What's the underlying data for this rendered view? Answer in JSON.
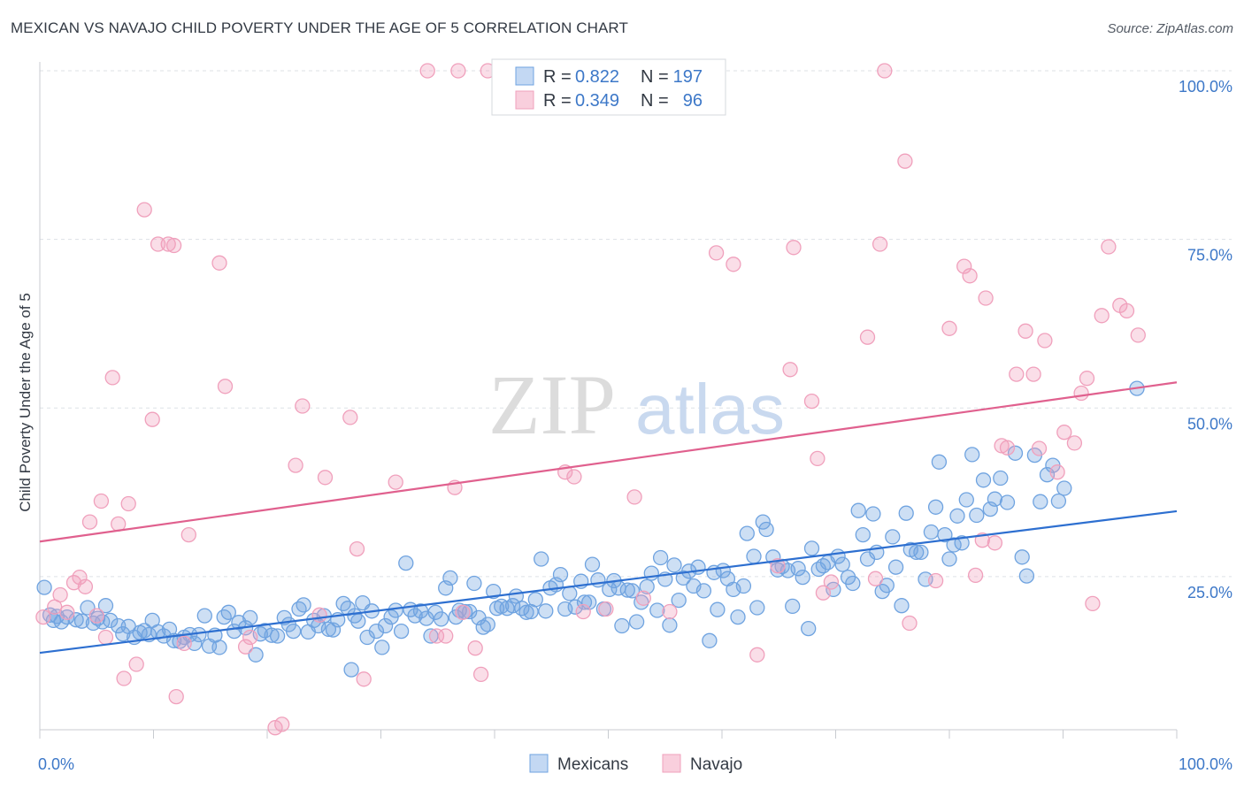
{
  "title": "MEXICAN VS NAVAJO CHILD POVERTY UNDER THE AGE OF 5 CORRELATION CHART",
  "source": "Source: ZipAtlas.com",
  "watermark": {
    "part1": "ZIP",
    "part2": "atlas"
  },
  "colors": {
    "mexicans": "#6fa3e0",
    "mexicans_line": "#2d6fd0",
    "navajo": "#f0a0bc",
    "navajo_line": "#e0608e",
    "tick": "#3d78c8",
    "grid": "#dde1e6"
  },
  "legend": {
    "r_label": "R =",
    "n_label": "N =",
    "mexicans": {
      "r": "0.822",
      "n": "197"
    },
    "navajo": {
      "r": "0.349",
      "n": "96"
    }
  },
  "chart_data": {
    "type": "scatter",
    "title": "MEXICAN VS NAVAJO CHILD POVERTY UNDER THE AGE OF 5 CORRELATION CHART",
    "xlabel": "",
    "ylabel": "Child Poverty Under the Age of 5",
    "xlim": [
      0,
      100
    ],
    "ylim": [
      0,
      104
    ],
    "x_tick_labels": [
      "0.0%",
      "100.0%"
    ],
    "y_ticks": [
      25,
      50,
      75,
      100
    ],
    "y_tick_labels": [
      "25.0%",
      "50.0%",
      "75.0%",
      "100.0%"
    ],
    "grid": true,
    "legend_position": "top-center",
    "series": [
      {
        "name": "Mexicans",
        "r": 0.822,
        "n": 197,
        "trend": {
          "x": [
            0,
            100
          ],
          "y": [
            13.7,
            34.7
          ]
        },
        "points": [
          [
            0.4,
            23.4
          ],
          [
            0.9,
            19.3
          ],
          [
            1.2,
            18.5
          ],
          [
            1.5,
            19.1
          ],
          [
            1.9,
            18.3
          ],
          [
            2.4,
            19.0
          ],
          [
            3.2,
            18.6
          ],
          [
            3.7,
            18.4
          ],
          [
            4.2,
            20.4
          ],
          [
            4.7,
            18.1
          ],
          [
            5.1,
            18.8
          ],
          [
            5.5,
            18.3
          ],
          [
            5.8,
            20.7
          ],
          [
            6.2,
            18.5
          ],
          [
            6.9,
            17.7
          ],
          [
            7.3,
            16.5
          ],
          [
            7.8,
            17.6
          ],
          [
            8.3,
            16.0
          ],
          [
            8.8,
            16.7
          ],
          [
            9.2,
            17.0
          ],
          [
            9.6,
            16.4
          ],
          [
            9.9,
            18.5
          ],
          [
            10.4,
            16.8
          ],
          [
            10.9,
            16.2
          ],
          [
            11.4,
            17.2
          ],
          [
            11.8,
            15.5
          ],
          [
            12.3,
            15.4
          ],
          [
            12.7,
            16.0
          ],
          [
            13.2,
            16.4
          ],
          [
            13.6,
            15.1
          ],
          [
            14.0,
            16.4
          ],
          [
            14.5,
            19.2
          ],
          [
            14.9,
            14.7
          ],
          [
            15.4,
            16.3
          ],
          [
            15.8,
            14.5
          ],
          [
            16.2,
            19.0
          ],
          [
            16.6,
            19.7
          ],
          [
            17.1,
            16.9
          ],
          [
            17.5,
            18.2
          ],
          [
            18.1,
            17.4
          ],
          [
            18.5,
            18.9
          ],
          [
            19.0,
            13.4
          ],
          [
            19.4,
            16.5
          ],
          [
            19.8,
            17.0
          ],
          [
            20.4,
            16.3
          ],
          [
            20.9,
            16.2
          ],
          [
            21.5,
            18.9
          ],
          [
            21.9,
            17.9
          ],
          [
            22.3,
            16.9
          ],
          [
            22.8,
            20.2
          ],
          [
            23.2,
            20.8
          ],
          [
            23.6,
            16.8
          ],
          [
            24.1,
            18.5
          ],
          [
            24.5,
            17.7
          ],
          [
            25.0,
            19.2
          ],
          [
            25.4,
            17.2
          ],
          [
            25.8,
            17.1
          ],
          [
            26.2,
            18.6
          ],
          [
            26.7,
            21.0
          ],
          [
            27.1,
            20.3
          ],
          [
            27.4,
            11.2
          ],
          [
            27.7,
            19.2
          ],
          [
            28.0,
            18.4
          ],
          [
            28.4,
            21.1
          ],
          [
            28.8,
            16.0
          ],
          [
            29.2,
            19.9
          ],
          [
            29.6,
            16.9
          ],
          [
            30.1,
            14.5
          ],
          [
            30.4,
            17.7
          ],
          [
            30.9,
            19.0
          ],
          [
            31.3,
            20.0
          ],
          [
            31.8,
            16.9
          ],
          [
            32.2,
            27.0
          ],
          [
            32.6,
            20.1
          ],
          [
            33.0,
            19.2
          ],
          [
            33.5,
            19.9
          ],
          [
            34.0,
            18.8
          ],
          [
            34.4,
            16.2
          ],
          [
            34.8,
            19.7
          ],
          [
            35.3,
            18.7
          ],
          [
            35.7,
            23.3
          ],
          [
            36.1,
            24.8
          ],
          [
            36.6,
            19.0
          ],
          [
            36.9,
            20.0
          ],
          [
            37.4,
            19.8
          ],
          [
            37.8,
            19.8
          ],
          [
            38.2,
            24.0
          ],
          [
            38.6,
            18.9
          ],
          [
            39.0,
            17.5
          ],
          [
            39.4,
            17.9
          ],
          [
            39.9,
            22.8
          ],
          [
            40.2,
            20.3
          ],
          [
            40.6,
            20.6
          ],
          [
            41.1,
            20.3
          ],
          [
            41.6,
            20.7
          ],
          [
            41.9,
            22.1
          ],
          [
            42.4,
            20.3
          ],
          [
            42.8,
            19.7
          ],
          [
            43.2,
            19.8
          ],
          [
            43.6,
            21.6
          ],
          [
            44.1,
            27.6
          ],
          [
            44.5,
            19.9
          ],
          [
            44.9,
            23.3
          ],
          [
            45.4,
            23.8
          ],
          [
            45.8,
            25.3
          ],
          [
            46.2,
            20.2
          ],
          [
            46.6,
            22.5
          ],
          [
            47.1,
            20.5
          ],
          [
            47.6,
            24.3
          ],
          [
            47.9,
            21.2
          ],
          [
            48.3,
            21.2
          ],
          [
            48.6,
            26.8
          ],
          [
            49.1,
            24.5
          ],
          [
            49.6,
            20.2
          ],
          [
            50.1,
            23.1
          ],
          [
            50.5,
            24.4
          ],
          [
            50.9,
            23.3
          ],
          [
            51.2,
            17.7
          ],
          [
            51.7,
            23.0
          ],
          [
            52.1,
            22.9
          ],
          [
            52.5,
            18.3
          ],
          [
            52.9,
            21.2
          ],
          [
            53.4,
            23.5
          ],
          [
            53.8,
            25.5
          ],
          [
            54.3,
            20.0
          ],
          [
            54.6,
            27.8
          ],
          [
            55.0,
            24.6
          ],
          [
            55.4,
            17.8
          ],
          [
            55.8,
            26.7
          ],
          [
            56.2,
            21.5
          ],
          [
            56.6,
            24.8
          ],
          [
            57.1,
            25.8
          ],
          [
            57.5,
            23.6
          ],
          [
            57.9,
            26.4
          ],
          [
            58.4,
            22.9
          ],
          [
            58.9,
            15.5
          ],
          [
            59.3,
            25.6
          ],
          [
            59.6,
            20.1
          ],
          [
            60.1,
            25.9
          ],
          [
            60.5,
            24.7
          ],
          [
            61.0,
            23.1
          ],
          [
            61.4,
            19.0
          ],
          [
            61.9,
            23.6
          ],
          [
            62.2,
            31.4
          ],
          [
            62.8,
            28.0
          ],
          [
            63.1,
            20.4
          ],
          [
            63.6,
            33.1
          ],
          [
            63.9,
            32.0
          ],
          [
            64.5,
            27.9
          ],
          [
            64.9,
            26.0
          ],
          [
            65.3,
            26.5
          ],
          [
            65.8,
            25.9
          ],
          [
            66.2,
            20.6
          ],
          [
            66.7,
            26.2
          ],
          [
            67.1,
            24.9
          ],
          [
            67.6,
            17.3
          ],
          [
            67.9,
            29.2
          ],
          [
            68.5,
            26.1
          ],
          [
            68.9,
            26.6
          ],
          [
            69.3,
            27.1
          ],
          [
            69.8,
            23.1
          ],
          [
            70.2,
            28.0
          ],
          [
            70.6,
            26.8
          ],
          [
            71.1,
            24.9
          ],
          [
            71.5,
            24.0
          ],
          [
            72.0,
            34.8
          ],
          [
            72.4,
            31.2
          ],
          [
            72.8,
            27.6
          ],
          [
            73.3,
            34.3
          ],
          [
            73.6,
            28.6
          ],
          [
            74.1,
            22.8
          ],
          [
            74.5,
            23.7
          ],
          [
            75.0,
            30.9
          ],
          [
            75.3,
            26.4
          ],
          [
            75.8,
            20.7
          ],
          [
            76.2,
            34.4
          ],
          [
            76.6,
            29.0
          ],
          [
            77.1,
            28.6
          ],
          [
            77.5,
            28.6
          ],
          [
            77.9,
            24.6
          ],
          [
            78.4,
            31.6
          ],
          [
            78.8,
            35.3
          ],
          [
            79.1,
            42.0
          ],
          [
            79.6,
            31.2
          ],
          [
            80.0,
            27.6
          ],
          [
            80.4,
            29.7
          ],
          [
            80.7,
            34.0
          ],
          [
            81.1,
            30.0
          ],
          [
            81.5,
            36.4
          ],
          [
            82.0,
            43.1
          ],
          [
            82.4,
            34.1
          ],
          [
            83.0,
            39.3
          ],
          [
            83.6,
            35.0
          ],
          [
            84.0,
            36.5
          ],
          [
            84.5,
            39.6
          ],
          [
            85.1,
            36.0
          ],
          [
            85.8,
            43.3
          ],
          [
            86.4,
            27.9
          ],
          [
            86.8,
            25.1
          ],
          [
            87.5,
            43.0
          ],
          [
            88.0,
            36.1
          ],
          [
            88.6,
            40.1
          ],
          [
            89.1,
            41.5
          ],
          [
            89.6,
            36.2
          ],
          [
            90.1,
            38.1
          ],
          [
            96.5,
            52.9
          ]
        ]
      },
      {
        "name": "Navajo",
        "r": 0.349,
        "n": 96,
        "trend": {
          "x": [
            0,
            100
          ],
          "y": [
            30.2,
            53.8
          ]
        },
        "points": [
          [
            0.3,
            19.0
          ],
          [
            1.3,
            20.5
          ],
          [
            1.8,
            22.3
          ],
          [
            2.4,
            19.7
          ],
          [
            3.0,
            24.1
          ],
          [
            3.5,
            24.9
          ],
          [
            4.0,
            23.5
          ],
          [
            4.4,
            33.1
          ],
          [
            5.0,
            19.2
          ],
          [
            5.4,
            36.2
          ],
          [
            5.8,
            16.0
          ],
          [
            6.4,
            54.5
          ],
          [
            6.9,
            32.8
          ],
          [
            7.4,
            9.9
          ],
          [
            7.8,
            35.8
          ],
          [
            8.5,
            12.0
          ],
          [
            9.2,
            79.4
          ],
          [
            9.9,
            48.3
          ],
          [
            10.4,
            74.3
          ],
          [
            11.3,
            74.3
          ],
          [
            11.8,
            74.1
          ],
          [
            12.0,
            7.2
          ],
          [
            12.7,
            15.1
          ],
          [
            13.1,
            31.2
          ],
          [
            15.8,
            71.5
          ],
          [
            16.3,
            53.2
          ],
          [
            18.1,
            14.6
          ],
          [
            18.5,
            16.0
          ],
          [
            20.7,
            2.6
          ],
          [
            21.3,
            3.1
          ],
          [
            22.5,
            41.5
          ],
          [
            23.1,
            50.3
          ],
          [
            24.6,
            19.3
          ],
          [
            25.1,
            39.7
          ],
          [
            27.3,
            48.6
          ],
          [
            27.9,
            29.1
          ],
          [
            28.5,
            9.8
          ],
          [
            31.3,
            39.0
          ],
          [
            34.1,
            100.0
          ],
          [
            34.9,
            16.2
          ],
          [
            35.7,
            16.2
          ],
          [
            36.5,
            38.2
          ],
          [
            36.8,
            100.0
          ],
          [
            37.2,
            19.7
          ],
          [
            38.3,
            14.4
          ],
          [
            38.8,
            10.5
          ],
          [
            39.4,
            100.0
          ],
          [
            46.2,
            40.5
          ],
          [
            47.0,
            39.8
          ],
          [
            47.8,
            19.8
          ],
          [
            49.8,
            20.2
          ],
          [
            52.3,
            36.8
          ],
          [
            53.1,
            21.8
          ],
          [
            55.4,
            19.8
          ],
          [
            59.5,
            73.0
          ],
          [
            61.0,
            71.3
          ],
          [
            63.1,
            13.4
          ],
          [
            64.9,
            26.6
          ],
          [
            66.0,
            55.7
          ],
          [
            66.3,
            73.8
          ],
          [
            67.9,
            51.0
          ],
          [
            68.4,
            42.5
          ],
          [
            68.9,
            22.6
          ],
          [
            69.6,
            24.2
          ],
          [
            72.8,
            60.5
          ],
          [
            73.5,
            24.7
          ],
          [
            73.9,
            74.3
          ],
          [
            74.3,
            100.0
          ],
          [
            76.1,
            86.6
          ],
          [
            76.5,
            18.1
          ],
          [
            78.8,
            24.4
          ],
          [
            80.0,
            61.8
          ],
          [
            81.3,
            71.0
          ],
          [
            81.8,
            69.6
          ],
          [
            82.3,
            25.2
          ],
          [
            82.9,
            30.4
          ],
          [
            83.2,
            66.3
          ],
          [
            84.0,
            30.0
          ],
          [
            84.6,
            44.4
          ],
          [
            85.1,
            44.1
          ],
          [
            85.9,
            55.0
          ],
          [
            86.7,
            61.4
          ],
          [
            87.4,
            55.0
          ],
          [
            87.9,
            44.0
          ],
          [
            88.4,
            60.0
          ],
          [
            89.5,
            40.5
          ],
          [
            90.1,
            46.4
          ],
          [
            91.0,
            44.8
          ],
          [
            91.6,
            52.2
          ],
          [
            92.1,
            54.4
          ],
          [
            92.6,
            21.0
          ],
          [
            93.4,
            63.7
          ],
          [
            94.0,
            73.9
          ],
          [
            95.0,
            65.2
          ],
          [
            95.6,
            64.4
          ],
          [
            96.6,
            60.8
          ]
        ]
      }
    ]
  }
}
